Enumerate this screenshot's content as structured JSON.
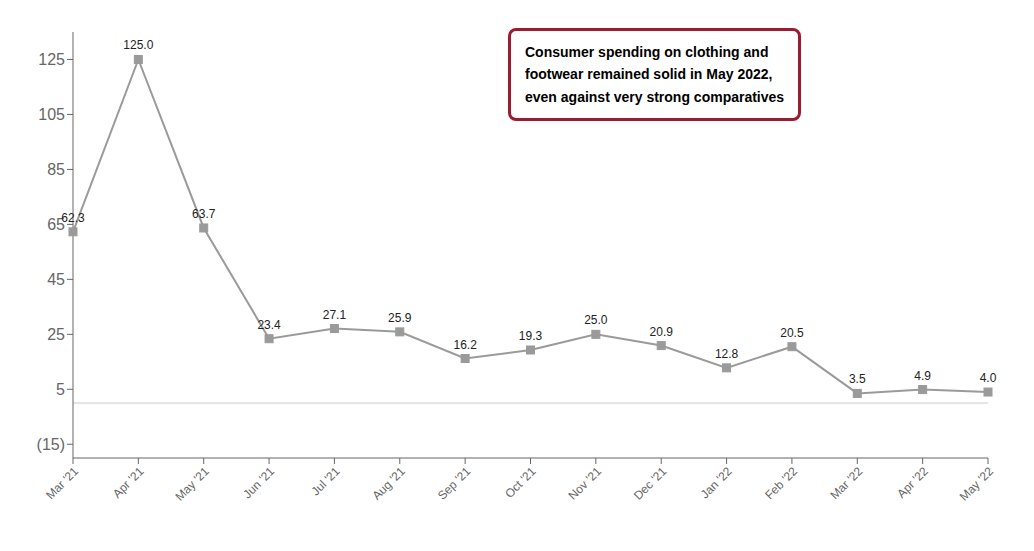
{
  "chart_data": {
    "type": "line",
    "categories": [
      "Mar '21",
      "Apr '21",
      "May '21",
      "Jun '21",
      "Jul '21",
      "Aug '21",
      "Sep '21",
      "Oct '21",
      "Nov '21",
      "Dec '21",
      "Jan '22",
      "Feb '22",
      "Mar '22",
      "Apr '22",
      "May '22"
    ],
    "values": [
      62.3,
      125.0,
      63.7,
      23.4,
      27.1,
      25.9,
      16.2,
      19.3,
      25.0,
      20.9,
      12.8,
      20.5,
      3.5,
      4.9,
      4.0
    ],
    "value_labels": [
      "62.3",
      "125.0",
      "63.7",
      "23.4",
      "27.1",
      "25.9",
      "16.2",
      "19.3",
      "25.0",
      "20.9",
      "12.8",
      "20.5",
      "3.5",
      "4.9",
      "4.0"
    ],
    "data_labels": true,
    "color": "#9a9a9a",
    "marker": "square",
    "ylim": [
      -20,
      135
    ],
    "yticks": [
      125,
      105,
      85,
      65,
      45,
      25,
      5,
      {
        "value": -15,
        "label": "(15)"
      }
    ],
    "grid": false,
    "hline": 0,
    "annotations": [
      {
        "text": "Consumer spending on clothing and\nfootwear remained solid in May 2022,\neven against very strong comparatives",
        "color": "#9B1B30"
      }
    ]
  }
}
